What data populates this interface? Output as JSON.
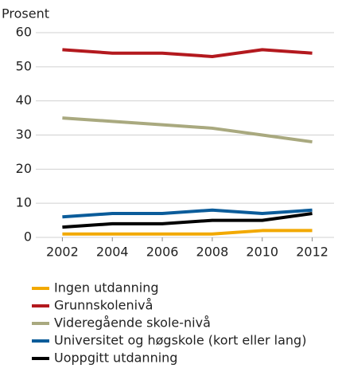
{
  "chart_data": {
    "type": "line",
    "ylabel": "Prosent",
    "x": [
      2002,
      2004,
      2006,
      2008,
      2010,
      2012
    ],
    "xlim": [
      2001,
      2013
    ],
    "xticks": [
      2002,
      2004,
      2006,
      2008,
      2010,
      2012
    ],
    "ylim": [
      0,
      60
    ],
    "yticks": [
      0,
      10,
      20,
      30,
      40,
      50,
      60
    ],
    "grid": true,
    "legend": "bottom",
    "series": [
      {
        "name": "Ingen utdanning",
        "color": "#f2a900",
        "values": [
          1,
          1,
          1,
          1,
          2,
          2
        ]
      },
      {
        "name": "Grunnskolenivå",
        "color": "#b3191e",
        "values": [
          55,
          54,
          54,
          53,
          55,
          54
        ]
      },
      {
        "name": "Videregående skole-nivå",
        "color": "#a9a97f",
        "values": [
          35,
          34,
          33,
          32,
          30,
          28
        ]
      },
      {
        "name": "Universitet og høgskole (kort eller lang)",
        "color": "#0b5c9a",
        "values": [
          6,
          7,
          7,
          8,
          7,
          8
        ]
      },
      {
        "name": "Uoppgitt utdanning",
        "color": "#000000",
        "values": [
          3,
          4,
          4,
          5,
          5,
          7
        ]
      }
    ]
  }
}
